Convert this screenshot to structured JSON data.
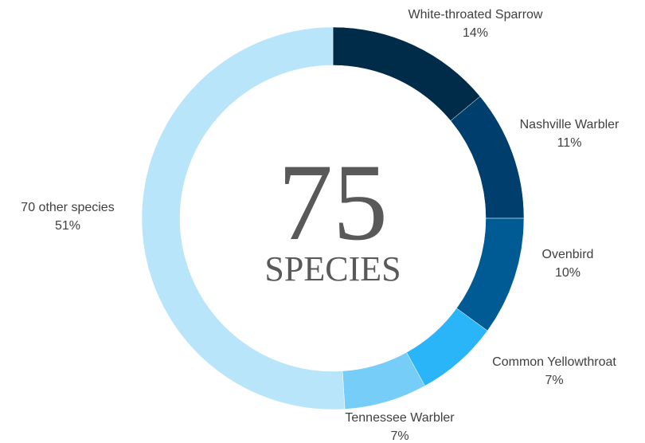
{
  "chart_data": {
    "type": "donut",
    "center_value": 75,
    "center_label": "SPECIES",
    "categories": [
      "White-throated Sparrow",
      "Nashville Warbler",
      "Ovenbird",
      "Common Yellowthroat",
      "Tennessee Warbler",
      "70 other species"
    ],
    "values": [
      14,
      11,
      10,
      7,
      7,
      51
    ],
    "value_labels": [
      "14%",
      "11%",
      "10%",
      "7%",
      "7%",
      "51%"
    ],
    "colors": [
      "#002b49",
      "#003e6d",
      "#005b94",
      "#29b5f7",
      "#76cdf8",
      "#b9e5fb"
    ]
  }
}
